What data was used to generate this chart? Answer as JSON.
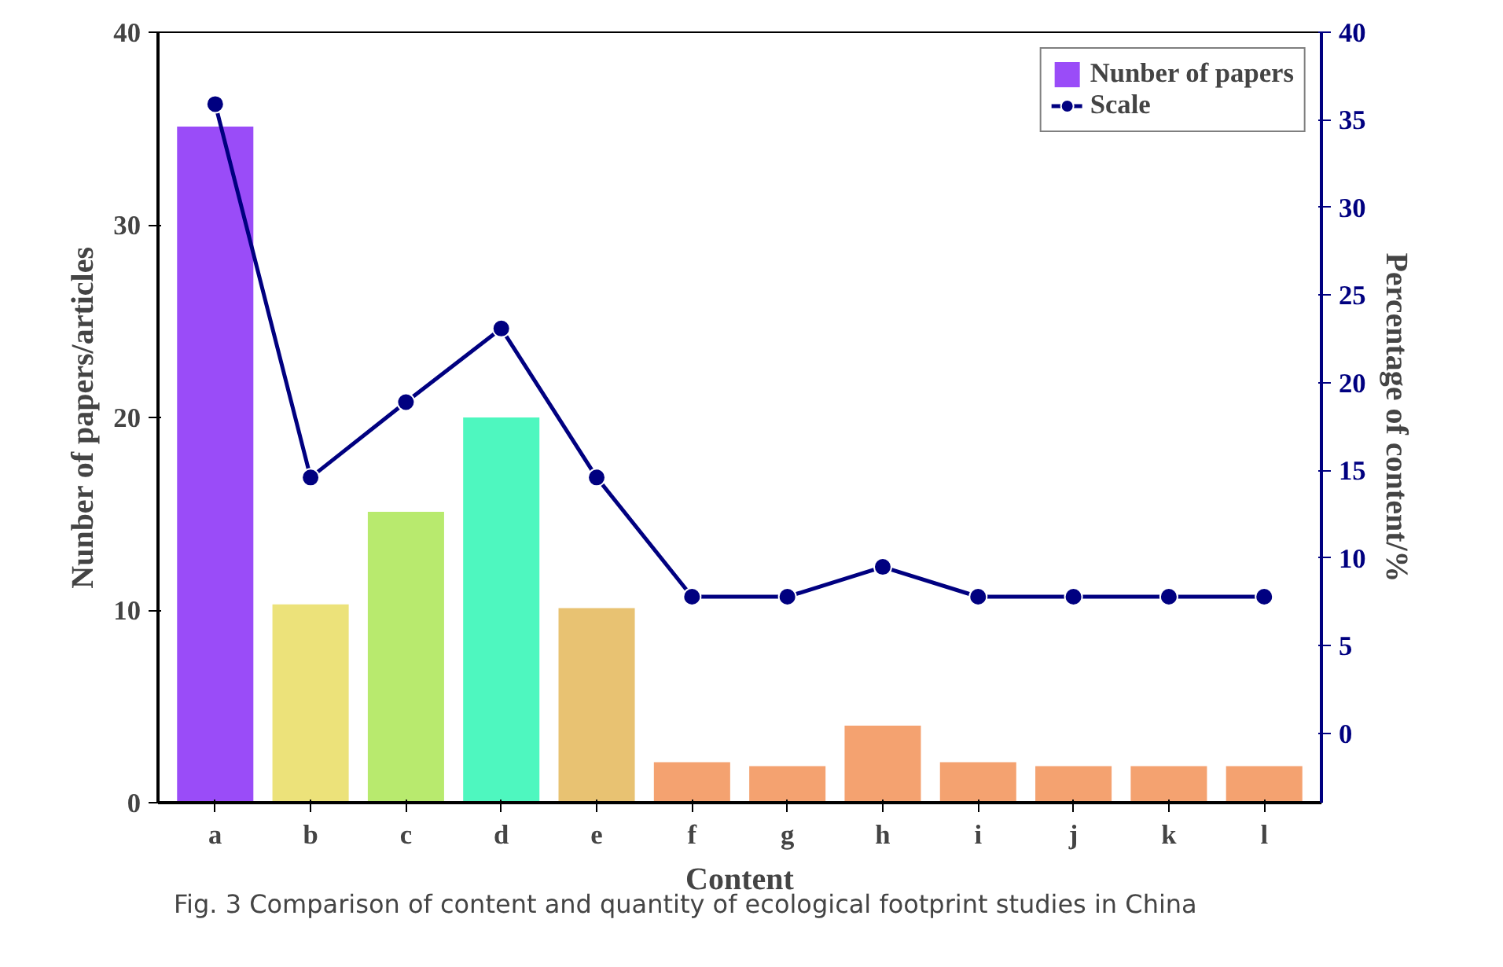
{
  "chart_data": {
    "type": "bar",
    "xlabel": "Content",
    "ylabel": "Nunber of papers/articles",
    "y2label": "Percentage of content/%",
    "categories": [
      "a",
      "b",
      "c",
      "d",
      "e",
      "f",
      "g",
      "h",
      "i",
      "j",
      "k",
      "l"
    ],
    "series": [
      {
        "name": "Nunber of papers",
        "colors": [
          "#9a4cf8",
          "#ece27a",
          "#b8ea6e",
          "#4ef7bf",
          "#e8c272",
          "#f4a270",
          "#f4a270",
          "#f4a270",
          "#f4a270",
          "#f4a270",
          "#f4a270",
          "#f4a270"
        ],
        "values": [
          35.1,
          10.3,
          15.1,
          20,
          10.1,
          2.1,
          1.9,
          4,
          2.1,
          1.9,
          1.9,
          1.9
        ]
      },
      {
        "name": "Scale",
        "type": "line",
        "axis": "y2",
        "color": "#000080",
        "marker": "circle",
        "values": [
          35.9,
          14.6,
          18.9,
          23.1,
          14.6,
          7.8,
          7.8,
          9.5,
          7.8,
          7.8,
          7.8,
          7.8
        ]
      }
    ],
    "ylim": [
      0,
      40
    ],
    "yticks": [
      0,
      10,
      20,
      30,
      40
    ],
    "y2lim": [
      -3.95,
      40
    ],
    "y2ticks": [
      0,
      5,
      10,
      15,
      20,
      25,
      30,
      35,
      40
    ],
    "grid": false,
    "legend": "top right",
    "annotations": [
      "Fig. 3  Comparison of content and quantity of ecological footprint studies in China"
    ]
  }
}
